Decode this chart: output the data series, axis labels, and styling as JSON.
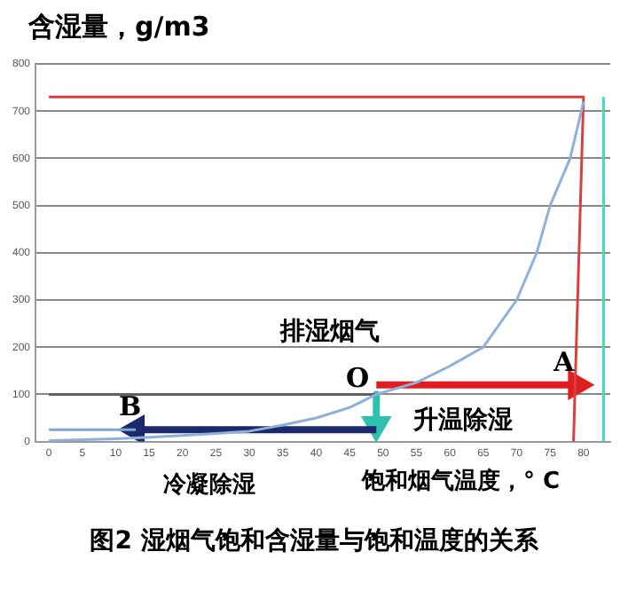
{
  "chart_data": {
    "type": "line",
    "title": "图2 湿烟气饱和含湿量与饱和温度的关系",
    "xlabel": "饱和烟气温度，° C",
    "ylabel": "含湿量，g/m3",
    "xlim": [
      -2,
      84
    ],
    "xticks": [
      0,
      5,
      10,
      15,
      20,
      25,
      30,
      35,
      40,
      45,
      50,
      55,
      60,
      65,
      70,
      75,
      80
    ],
    "ylim": [
      0,
      800
    ],
    "yticks": [
      0,
      100,
      200,
      300,
      400,
      500,
      600,
      700,
      800
    ],
    "grid": "y",
    "legend": false,
    "series": [
      {
        "color": "#8fb0d8",
        "x": [
          0,
          5,
          10,
          15,
          20,
          25,
          30,
          35,
          40,
          45,
          49,
          55,
          60,
          65,
          70,
          73,
          75,
          78,
          80
        ],
        "values": [
          2,
          4,
          6,
          9,
          13,
          17,
          22,
          35,
          50,
          72,
          100,
          125,
          160,
          200,
          300,
          400,
          500,
          600,
          720
        ]
      },
      {
        "color": "#d84040",
        "x": [
          0,
          80,
          78.5
        ],
        "values": [
          730,
          730,
          0
        ]
      },
      {
        "color": "#40e0b0",
        "x": [
          83,
          83
        ],
        "values": [
          0,
          730
        ]
      },
      {
        "color": "#606060",
        "x": [
          0,
          49
        ],
        "values": [
          100,
          100
        ]
      },
      {
        "color": "#7fa7d0",
        "x": [
          0,
          13
        ],
        "values": [
          25,
          25
        ]
      },
      {
        "color": "#1a2a6a",
        "x": [
          49,
          13
        ],
        "values": [
          25,
          25
        ],
        "marker": "triangle"
      },
      {
        "color": "#e02020",
        "x": [
          49,
          79
        ],
        "values": [
          120,
          120
        ],
        "marker": "triangle"
      },
      {
        "color": "#30c0b0",
        "x": [
          49,
          49
        ],
        "values": [
          100,
          35
        ],
        "marker": "triangle"
      }
    ],
    "annotations": [
      "排湿烟气",
      "O",
      "A",
      "B",
      "升温除湿",
      "冷凝除湿"
    ]
  }
}
